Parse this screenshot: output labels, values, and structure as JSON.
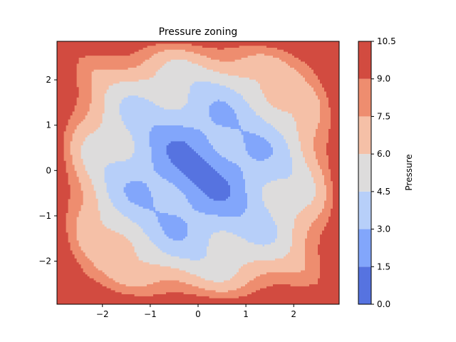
{
  "chart_data": {
    "type": "contourf",
    "title": "Pressure zoning",
    "xlabel": "",
    "ylabel": "",
    "xlim": [
      -2.95,
      2.95
    ],
    "ylim": [
      -2.95,
      2.85
    ],
    "xticks": [
      -2,
      -1,
      0,
      1,
      2
    ],
    "xtick_labels": [
      "−2",
      "−1",
      "0",
      "1",
      "2"
    ],
    "yticks": [
      -2,
      -1,
      0,
      1,
      2
    ],
    "ytick_labels": [
      "−2",
      "−1",
      "0",
      "1",
      "2"
    ],
    "grid": false,
    "colorbar": {
      "label": "Pressure",
      "levels": [
        0.0,
        1.5,
        3.0,
        4.5,
        6.0,
        7.5,
        9.0,
        10.5
      ],
      "level_labels": [
        "0.0",
        "1.5",
        "3.0",
        "4.5",
        "6.0",
        "7.5",
        "9.0",
        "10.5"
      ],
      "colors": [
        "#5673e0",
        "#82a6fb",
        "#b7cff9",
        "#dddcdc",
        "#f5c0a7",
        "#ee8d6f",
        "#d24b40"
      ]
    },
    "zones": [
      {
        "band": "9.0-10.5",
        "region": "outer corners and edges"
      },
      {
        "band": "7.5-9.0",
        "region": "outer ring"
      },
      {
        "band": "6.0-7.5",
        "region": "inner ring with blobs near (±1,±1), (±2,±1), (±1,±2), (±2,±2)"
      },
      {
        "band": "4.5-6.0",
        "region": "cross-shaped middle zone"
      },
      {
        "band": "3.0-4.5",
        "region": "central lobed zone and spots near (±1,±1)"
      },
      {
        "band": "1.5-3.0",
        "region": "core around origin and small spots near (0,±0.9), (±0.9,0)"
      },
      {
        "band": "0.0-1.5",
        "region": "minimum at origin"
      }
    ]
  }
}
